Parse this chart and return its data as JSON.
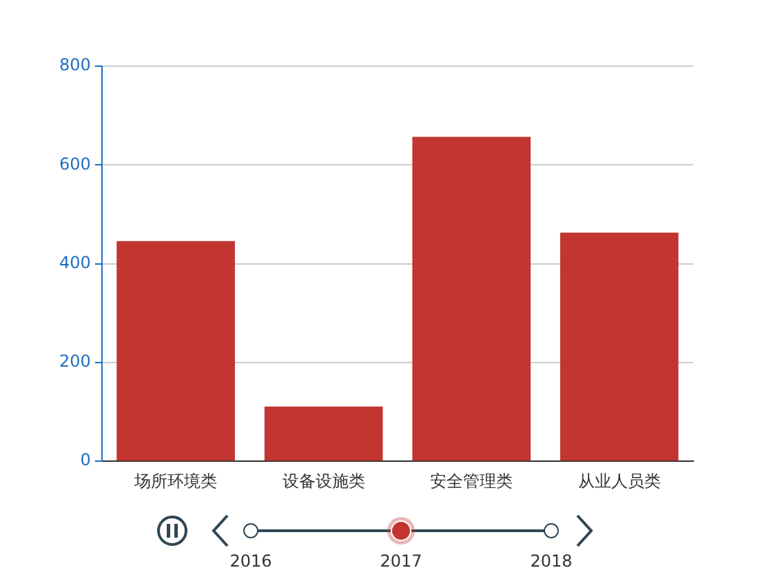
{
  "chart_data": {
    "type": "bar",
    "categories": [
      "场所环境类",
      "设备设施类",
      "安全管理类",
      "从业人员类"
    ],
    "values": [
      446,
      111,
      657,
      463
    ],
    "color": "#c23531",
    "ylim": [
      0,
      800
    ],
    "yticks": [
      0,
      200,
      400,
      600,
      800
    ],
    "grid": "y",
    "annotations": [
      "2016",
      "2017",
      "2018"
    ]
  }
}
